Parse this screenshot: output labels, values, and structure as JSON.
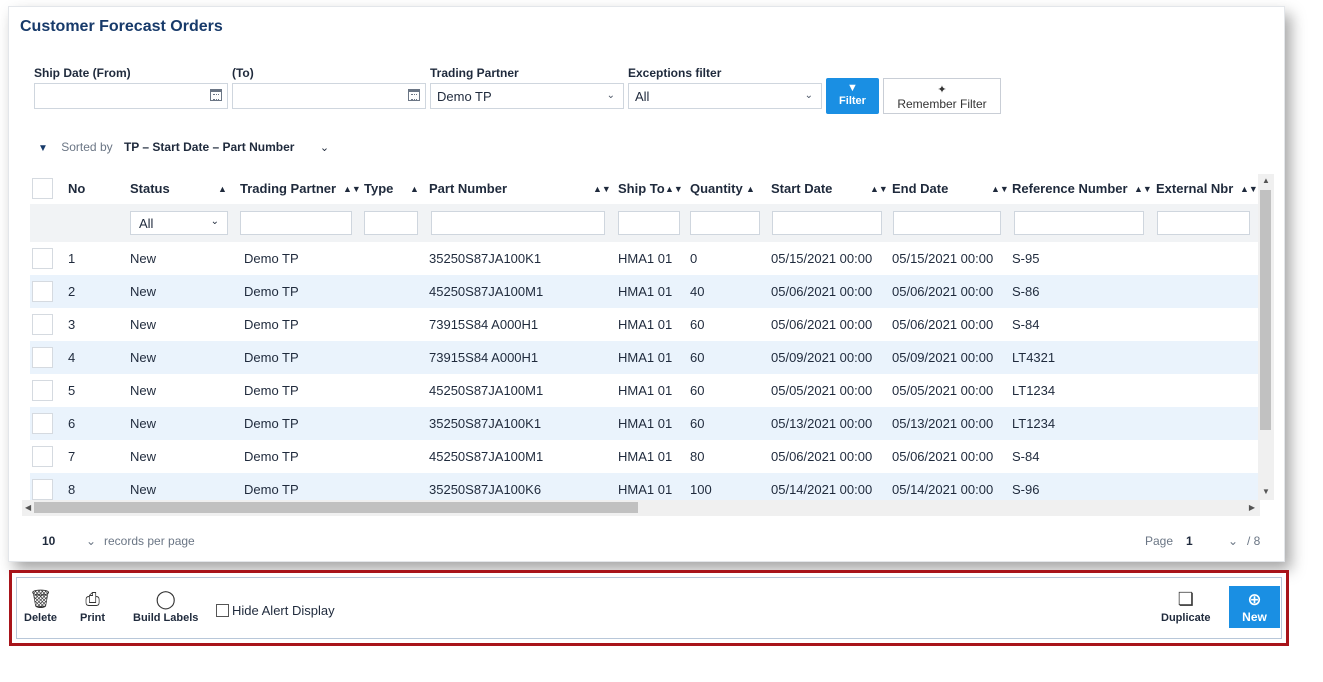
{
  "page": {
    "title": "Customer Forecast Orders"
  },
  "filters": {
    "ship_date_from_label": "Ship Date (From)",
    "ship_date_to_label": "(To)",
    "trading_partner_label": "Trading Partner",
    "trading_partner_value": "Demo TP",
    "exceptions_label": "Exceptions filter",
    "exceptions_value": "All",
    "filter_button": "Filter",
    "remember_button": "Remember Filter"
  },
  "sort": {
    "label": "Sorted by",
    "value": "TP – Start Date – Part Number"
  },
  "table": {
    "headers": [
      "No",
      "Status",
      "Trading Partner",
      "Type",
      "Part Number",
      "Ship To",
      "Quantity",
      "Start Date",
      "End Date",
      "Reference Number",
      "External Nbr"
    ],
    "status_filter": "All",
    "rows": [
      {
        "no": "1",
        "status": "New",
        "tp": "Demo TP",
        "part": "35250S87JA100K1",
        "ship_to": "HMA1 01",
        "qty": "0",
        "start": "05/15/2021 00:00",
        "end": "05/15/2021 00:00",
        "ref": "S-95"
      },
      {
        "no": "2",
        "status": "New",
        "tp": "Demo TP",
        "part": "45250S87JA100M1",
        "ship_to": "HMA1 01",
        "qty": "40",
        "start": "05/06/2021 00:00",
        "end": "05/06/2021 00:00",
        "ref": "S-86"
      },
      {
        "no": "3",
        "status": "New",
        "tp": "Demo TP",
        "part": "73915S84 A000H1",
        "ship_to": "HMA1 01",
        "qty": "60",
        "start": "05/06/2021 00:00",
        "end": "05/06/2021 00:00",
        "ref": "S-84"
      },
      {
        "no": "4",
        "status": "New",
        "tp": "Demo TP",
        "part": "73915S84 A000H1",
        "ship_to": "HMA1 01",
        "qty": "60",
        "start": "05/09/2021 00:00",
        "end": "05/09/2021 00:00",
        "ref": "LT4321"
      },
      {
        "no": "5",
        "status": "New",
        "tp": "Demo TP",
        "part": "45250S87JA100M1",
        "ship_to": "HMA1 01",
        "qty": "60",
        "start": "05/05/2021 00:00",
        "end": "05/05/2021 00:00",
        "ref": "LT1234"
      },
      {
        "no": "6",
        "status": "New",
        "tp": "Demo TP",
        "part": "35250S87JA100K1",
        "ship_to": "HMA1 01",
        "qty": "60",
        "start": "05/13/2021 00:00",
        "end": "05/13/2021 00:00",
        "ref": "LT1234"
      },
      {
        "no": "7",
        "status": "New",
        "tp": "Demo TP",
        "part": "45250S87JA100M1",
        "ship_to": "HMA1 01",
        "qty": "80",
        "start": "05/06/2021 00:00",
        "end": "05/06/2021 00:00",
        "ref": "S-84"
      },
      {
        "no": "8",
        "status": "New",
        "tp": "Demo TP",
        "part": "35250S87JA100K6",
        "ship_to": "HMA1 01",
        "qty": "100",
        "start": "05/14/2021 00:00",
        "end": "05/14/2021 00:00",
        "ref": "S-96"
      }
    ]
  },
  "pagination": {
    "per_page": "10",
    "per_page_label": "records per page",
    "page_label": "Page",
    "page": "1",
    "total": "/ 8"
  },
  "toolbar": {
    "delete": "Delete",
    "print": "Print",
    "build_labels": "Build Labels",
    "hide_alert": "Hide Alert Display",
    "duplicate": "Duplicate",
    "new": "New"
  },
  "colors": {
    "accent": "#1a8fe3",
    "highlight_border": "#a8141a",
    "alt_row": "#eaf3fc"
  }
}
